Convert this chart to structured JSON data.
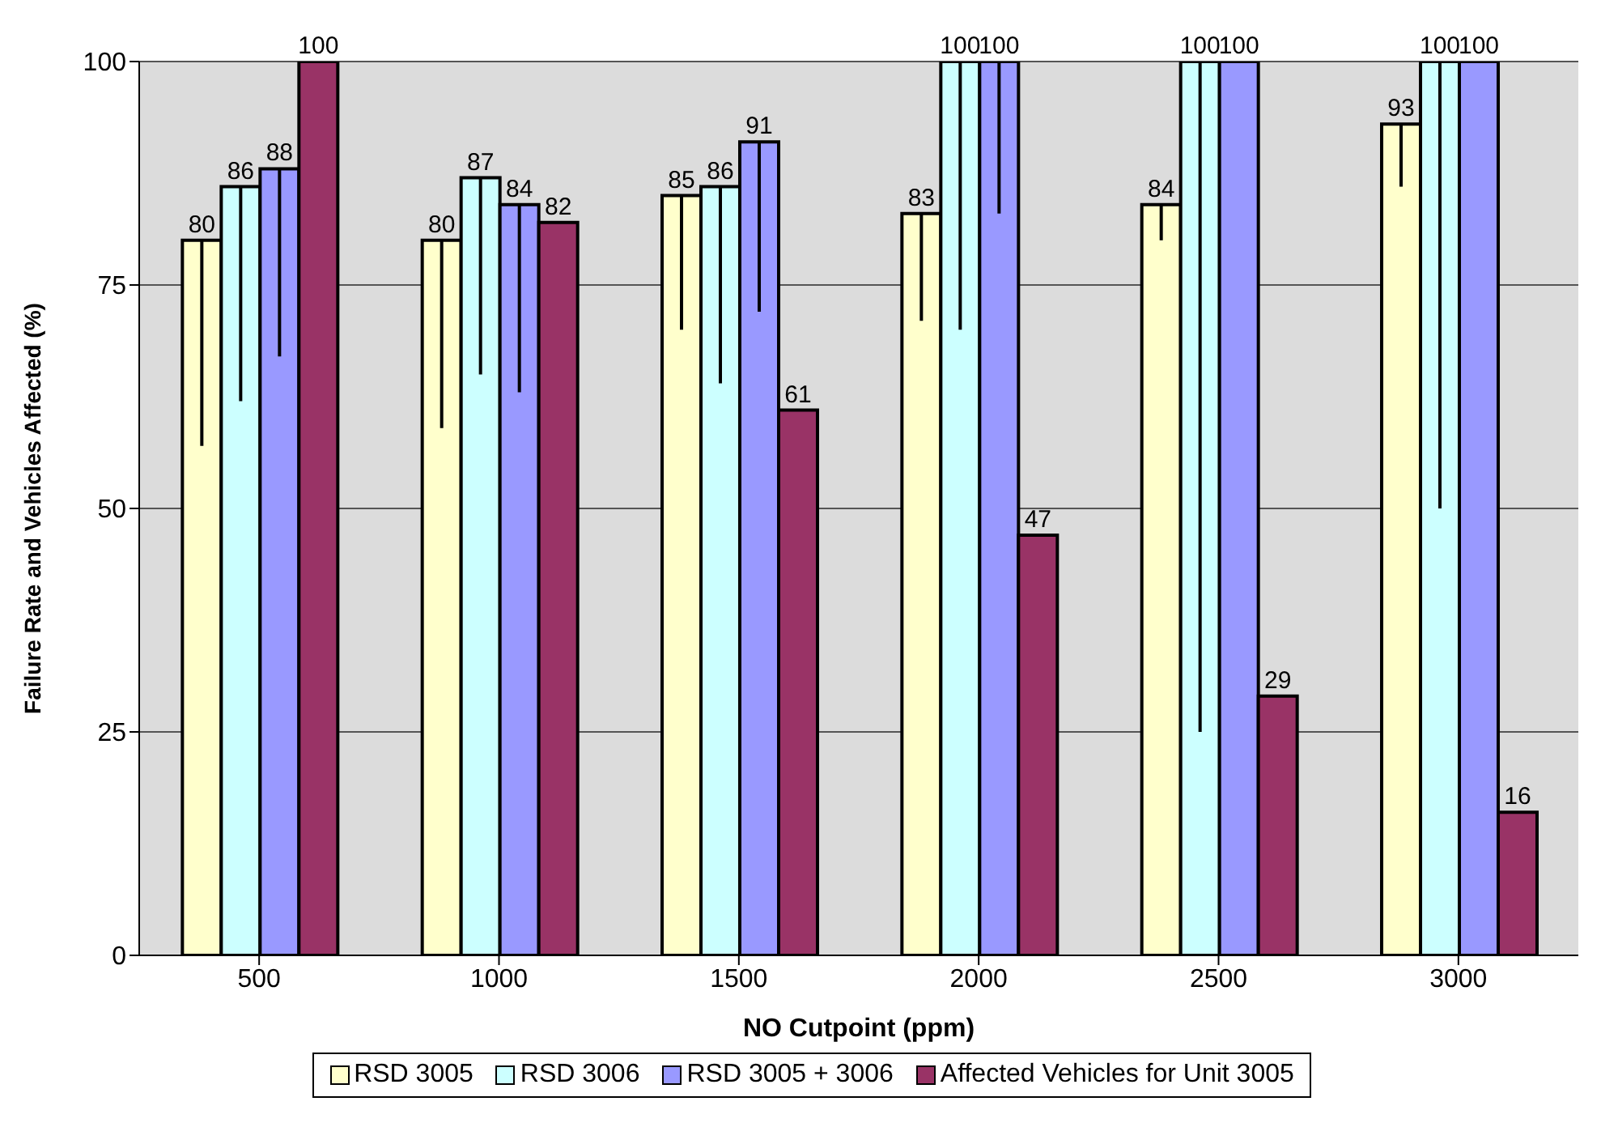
{
  "chart_data": {
    "type": "bar",
    "xlabel": "NO Cutpoint (ppm)",
    "ylabel": "Failure Rate and Vehicles Affected  (%)",
    "categories": [
      "500",
      "1000",
      "1500",
      "2000",
      "2500",
      "3000"
    ],
    "series": [
      {
        "name": "RSD 3005",
        "color": "#ffffcc",
        "values": [
          80,
          80,
          85,
          83,
          84,
          93
        ],
        "errors": [
          [
            57,
            80
          ],
          [
            59,
            80
          ],
          [
            70,
            85
          ],
          [
            71,
            83
          ],
          [
            80,
            84
          ],
          [
            86,
            93
          ]
        ]
      },
      {
        "name": "RSD 3006",
        "color": "#ccffff",
        "values": [
          86,
          87,
          86,
          100,
          100,
          100
        ],
        "errors": [
          [
            62,
            86
          ],
          [
            65,
            87
          ],
          [
            64,
            86
          ],
          [
            70,
            100
          ],
          [
            25,
            100
          ],
          [
            50,
            100
          ]
        ]
      },
      {
        "name": "RSD 3005 + 3006",
        "color": "#9999ff",
        "values": [
          88,
          84,
          91,
          100,
          100,
          100
        ],
        "errors": [
          [
            67,
            88
          ],
          [
            63,
            84
          ],
          [
            72,
            91
          ],
          [
            83,
            100
          ],
          null,
          null
        ]
      },
      {
        "name": "Affected Vehicles for Unit 3005",
        "color": "#993366",
        "values": [
          100,
          82,
          61,
          47,
          29,
          16
        ]
      }
    ],
    "ylim": [
      0,
      100
    ],
    "yticks": [
      0,
      25,
      50,
      75,
      100
    ],
    "grid": "y",
    "legend": "bottom",
    "data_labels": true
  }
}
